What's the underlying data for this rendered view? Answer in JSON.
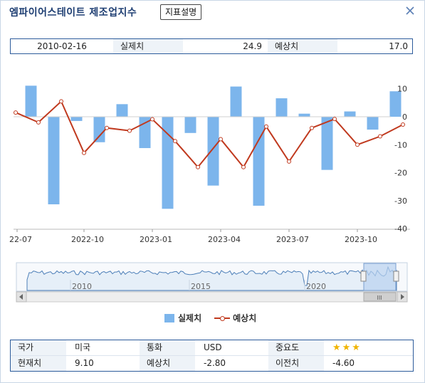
{
  "header": {
    "title": "엠파이어스테이트 제조업지수",
    "desc_button": "지표설명",
    "close_icon": "close-icon"
  },
  "info_bar": {
    "date": "2010-02-16",
    "actual_label": "실제치",
    "actual_value": "24.9",
    "forecast_label": "예상치",
    "forecast_value": "17.0"
  },
  "chart_data": {
    "type": "bar+line",
    "x_tick_labels": [
      "22-07",
      "2022-10",
      "2023-01",
      "2023-04",
      "2023-07",
      "2023-10"
    ],
    "y_tick_labels": [
      "10",
      "0",
      "-10",
      "-20",
      "-30",
      "-40"
    ],
    "ylim": [
      -40,
      10
    ],
    "series": [
      {
        "name": "실제치",
        "type": "bar",
        "color": "#7cb5ec",
        "values": [
          11.1,
          -31.3,
          -1.5,
          -9.1,
          4.5,
          -11.2,
          -32.9,
          -5.8,
          -24.6,
          10.8,
          -31.8,
          6.6,
          1.1,
          -19.0,
          1.9,
          -4.6,
          9.1
        ]
      },
      {
        "name": "예상치",
        "type": "line",
        "color": "#c0391e",
        "values": [
          1.5,
          -2.0,
          5.5,
          -12.9,
          -4.0,
          -5.0,
          -0.9,
          -8.7,
          -18.0,
          -8.0,
          -18.0,
          -3.5,
          -16.0,
          -4.0,
          -0.8,
          -10.0,
          -7.0,
          -2.8
        ]
      }
    ],
    "grid": false,
    "legend_position": "bottom"
  },
  "navigator": {
    "labels": [
      "2010",
      "2015",
      "2020"
    ],
    "handle_glyph": "III"
  },
  "legend": {
    "actual": "실제치",
    "forecast": "예상치"
  },
  "details": {
    "country_label": "국가",
    "country_value": "미국",
    "currency_label": "통화",
    "currency_value": "USD",
    "importance_label": "중요도",
    "importance_value": "★★★",
    "current_label": "현재치",
    "current_value": "9.10",
    "forecast_label": "예상치",
    "forecast_value": "-2.80",
    "previous_label": "이전치",
    "previous_value": "-4.60"
  },
  "colors": {
    "bar": "#7cb5ec",
    "line": "#c0391e",
    "border": "#2c5b9b",
    "navigator_fill": "#dbe8f5"
  }
}
